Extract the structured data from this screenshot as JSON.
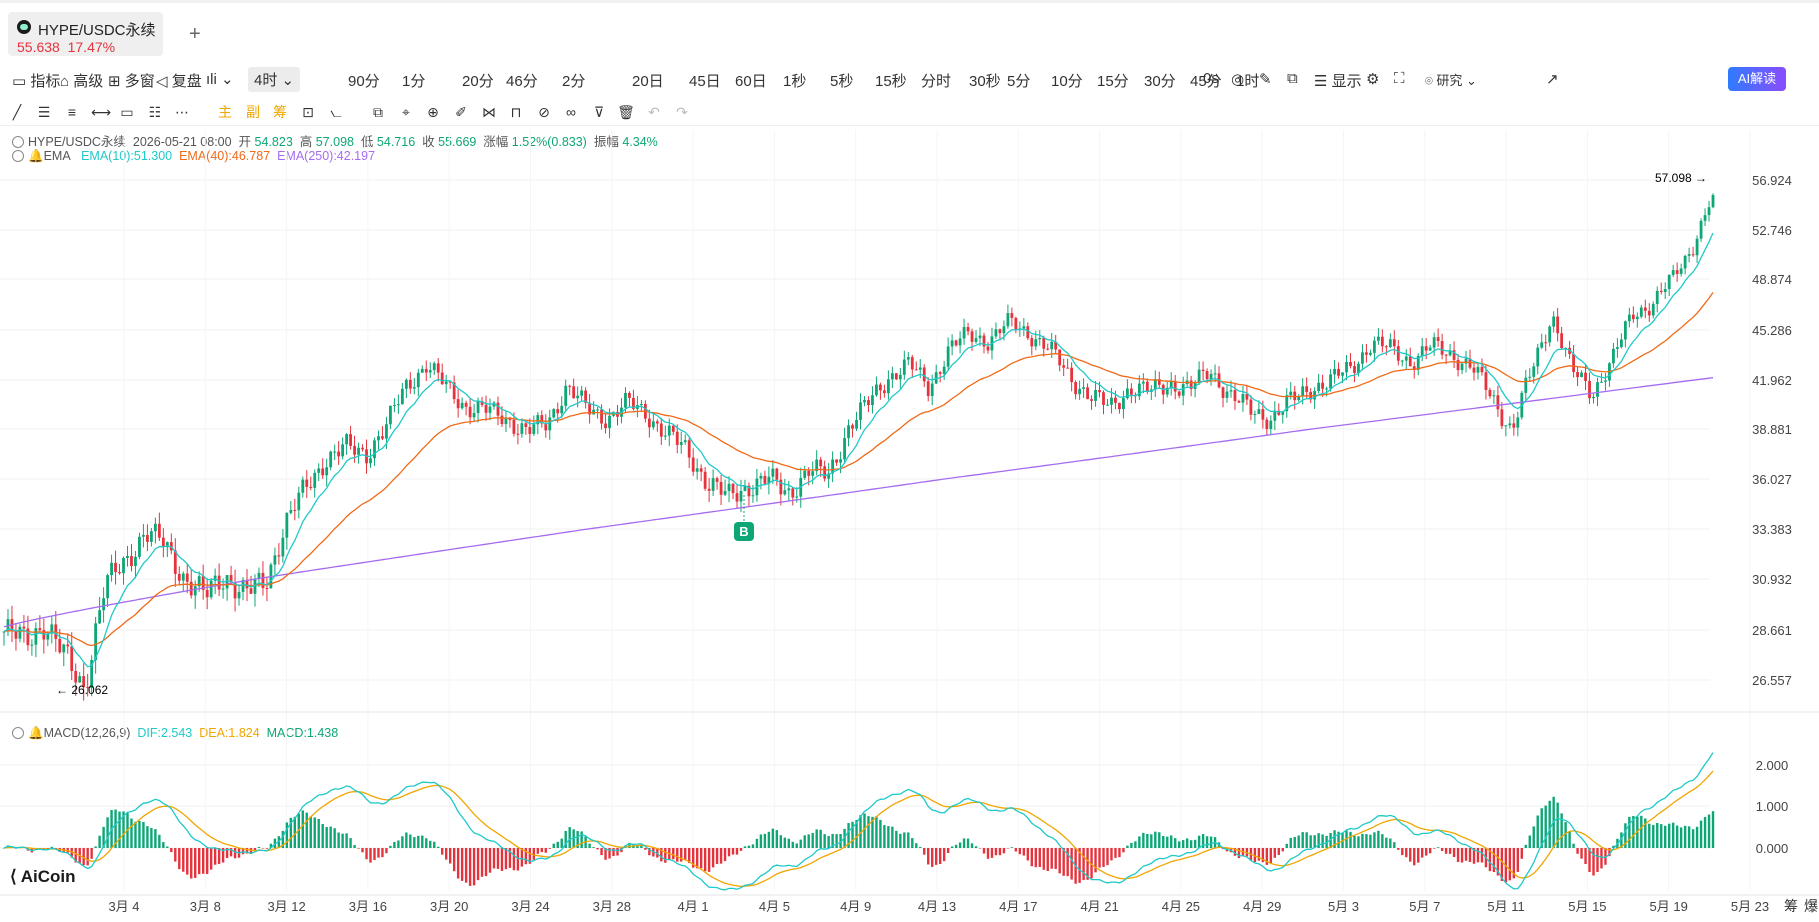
{
  "tab": {
    "symbol": "HYPE/USDC永续",
    "price": "55.638",
    "change": "17.47%",
    "add_icon": "plus-icon"
  },
  "toolbar": {
    "indicators": "指标",
    "advanced": "高级",
    "multi": "多窗",
    "replay": "复盘",
    "timeframes": [
      "4时",
      "90分",
      "1分",
      "20分",
      "46分",
      "2分",
      "20日",
      "45日",
      "60日",
      "1秒",
      "5秒",
      "15秒",
      "分时",
      "30秒",
      "5分",
      "10分",
      "15分",
      "30分",
      "45分",
      "1时"
    ],
    "active_timeframe": "4时",
    "countdown": "0s",
    "display": "显示",
    "research": "研究",
    "ai": "AI解读"
  },
  "drawing_tools": {
    "main": "主",
    "sub": "副",
    "chips": "筹"
  },
  "ohlc": {
    "symbol": "HYPE/USDC永续",
    "date": "2026-05-21 08:00",
    "open_label": "开",
    "open": "54.823",
    "high_label": "高",
    "high": "57.098",
    "low_label": "低",
    "low": "54.716",
    "close_label": "收",
    "close": "55.669",
    "change_label": "涨幅",
    "change": "1.52%(0.833)",
    "amp_label": "振幅",
    "amp": "4.34%"
  },
  "ema": {
    "name": "EMA",
    "ema10": "EMA(10):51.300",
    "ema40": "EMA(40):46.787",
    "ema250": "EMA(250):42.197"
  },
  "macd": {
    "name": "MACD(12,26,9)",
    "dif": "DIF:2.543",
    "dea": "DEA:1.824",
    "hist": "MACD:1.438"
  },
  "marks": {
    "high": "57.098",
    "low": "26.062",
    "buy": "B"
  },
  "brand": "AiCoin",
  "bottom_right": {
    "chips": "筹",
    "burst": "爆"
  },
  "colors": {
    "up": "#0ea676",
    "down": "#e5333d",
    "ema10": "#1fc9c9",
    "ema40": "#f06a18",
    "ema250": "#a56cf0",
    "dea": "#f0a500"
  },
  "chart_data": {
    "type": "line",
    "title": "HYPE/USDC永续",
    "price_ticks": [
      "56.924",
      "52.746",
      "48.874",
      "45.286",
      "41.962",
      "38.881",
      "36.027",
      "33.383",
      "30.932",
      "28.661",
      "26.557"
    ],
    "macd_ticks": [
      "2.000",
      "1.000",
      "0.000"
    ],
    "x_labels": [
      "3月 4",
      "3月 8",
      "3月 12",
      "3月 16",
      "3月 20",
      "3月 24",
      "3月 28",
      "4月 1",
      "4月 5",
      "4月 9",
      "4月 13",
      "4月 17",
      "4月 21",
      "4月 25",
      "4月 29",
      "5月 3",
      "5月 7",
      "5月 11",
      "5月 15",
      "5月 19",
      "5月 23"
    ],
    "close_path": [
      28.6,
      28.2,
      29.0,
      27.5,
      26.3,
      30.5,
      31.8,
      33.2,
      32.6,
      31.0,
      30.1,
      31.2,
      30.2,
      30.8,
      33.7,
      35.5,
      37.2,
      37.8,
      37.5,
      39.0,
      41.6,
      43.0,
      41.5,
      40.3,
      40.0,
      39.6,
      38.7,
      39.2,
      41.6,
      40.1,
      39.6,
      40.5,
      39.8,
      38.6,
      37.5,
      35.9,
      35.0,
      35.7,
      36.0,
      35.3,
      36.5,
      36.2,
      39.0,
      40.5,
      42.2,
      43.0,
      41.5,
      44.0,
      45.0,
      44.6,
      45.8,
      45.1,
      44.0,
      42.2,
      41.0,
      40.2,
      41.5,
      41.2,
      41.8,
      41.4,
      42.6,
      41.0,
      40.0,
      39.6,
      40.6,
      41.5,
      41.9,
      42.8,
      44.4,
      44.0,
      43.2,
      44.2,
      43.7,
      42.8,
      40.9,
      38.8,
      42.6,
      46.4,
      42.5,
      41.2,
      43.3,
      46.4,
      47.2,
      48.9,
      51.5,
      55.7
    ],
    "ema10_last": 51.3,
    "ema40_last": 46.787,
    "ema250_last": 42.197,
    "dif_last": 2.543,
    "dea_last": 1.824,
    "macd_last": 1.438,
    "high": 57.098,
    "low": 26.062
  }
}
